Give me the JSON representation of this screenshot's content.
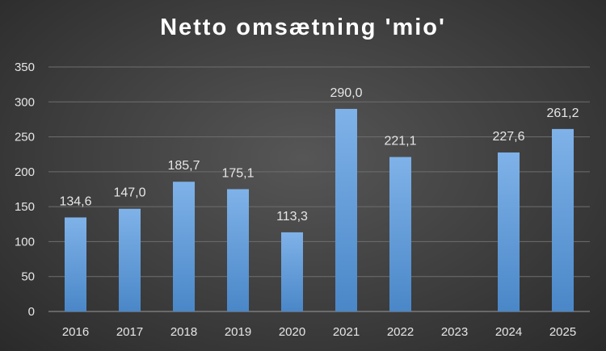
{
  "chart_data": {
    "type": "bar",
    "title": "Netto omsætning 'mio'",
    "xlabel": "",
    "ylabel": "",
    "categories": [
      "2016",
      "2017",
      "2018",
      "2019",
      "2020",
      "2021",
      "2022",
      "2023",
      "2024",
      "2025"
    ],
    "values": [
      134.6,
      147.0,
      185.7,
      175.1,
      113.3,
      290.0,
      221.1,
      null,
      227.6,
      261.2
    ],
    "data_labels": [
      "134,6",
      "147,0",
      "185,7",
      "175,1",
      "113,3",
      "290,0",
      "221,1",
      "",
      "227,6",
      "261,2"
    ],
    "ylim": [
      0,
      350
    ],
    "yticks": [
      0,
      50,
      100,
      150,
      200,
      250,
      300,
      350
    ],
    "grid": true,
    "legend": "none",
    "colors": {
      "bar_top": "#7fb2e8",
      "bar_bottom": "#4a87c8"
    }
  }
}
